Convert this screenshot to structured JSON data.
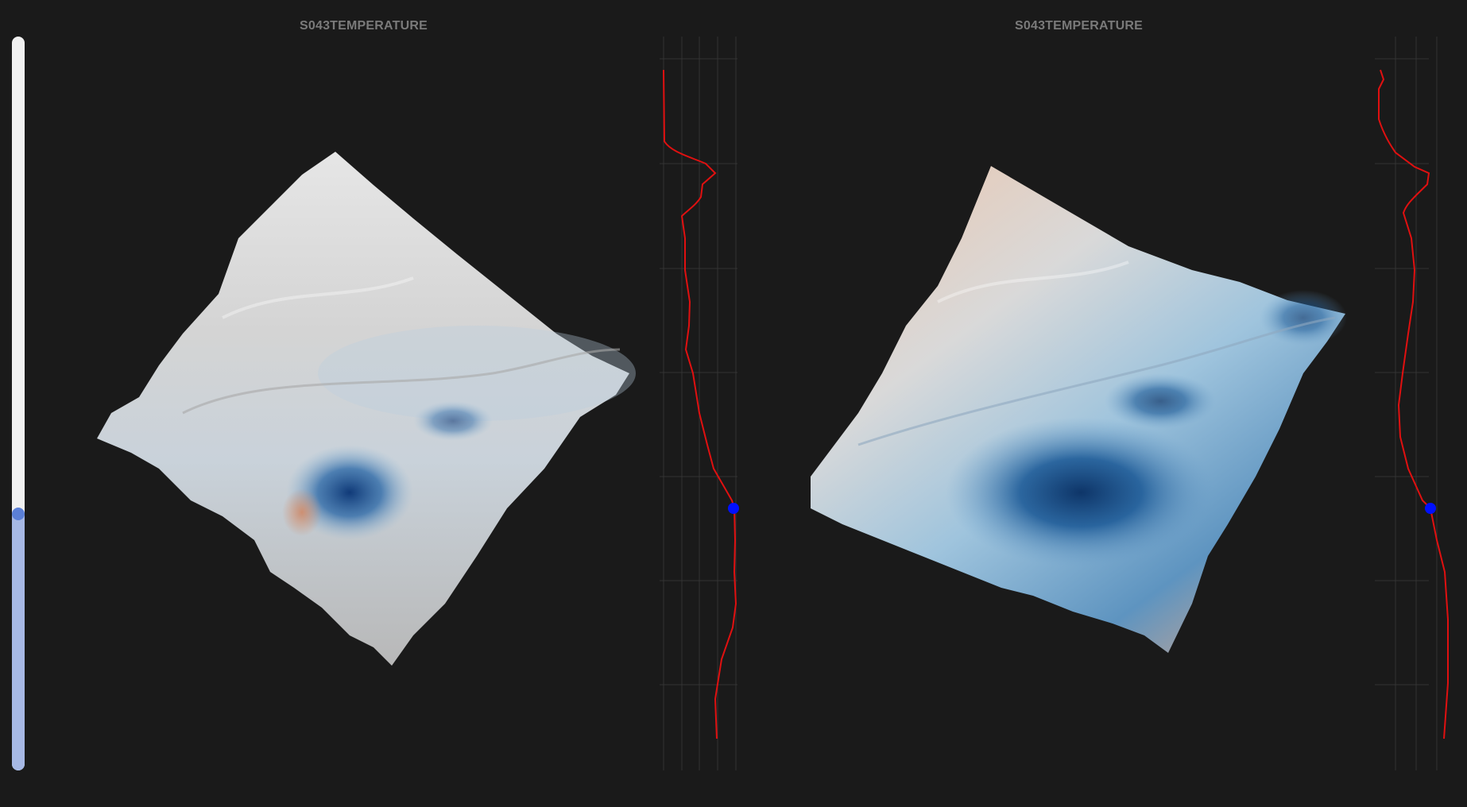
{
  "panels": [
    {
      "title": "S043TEMPERATURE",
      "variant": "subtle"
    },
    {
      "title": "S043TEMPERATURE",
      "variant": "strong"
    }
  ],
  "depth_slider": {
    "fraction": 0.35,
    "track_color": "#f0f0f0",
    "fill_color": "#a6b8e4",
    "thumb_color": "#5b7fd6"
  },
  "colors": {
    "background": "#1a1a1a",
    "profile_line": "#e01010",
    "profile_marker": "#0010ff",
    "grid": "#333333",
    "warm": "#d8a080",
    "cold": "#1a5a99"
  }
}
